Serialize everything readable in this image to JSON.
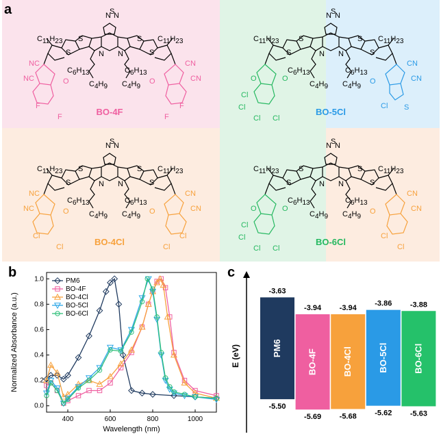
{
  "panel_labels": {
    "a": "a",
    "b": "b",
    "c": "c"
  },
  "molecules": {
    "bo4f": {
      "name": "BO-4F",
      "color": "#ef5fa0",
      "bg": "#fbe3ec"
    },
    "bo5cl": {
      "name": "BO-5Cl",
      "color_left": "#25b860",
      "color_right": "#2a9ae6",
      "bg_left": "#e0f4e6",
      "bg_right": "#dceffb"
    },
    "bo4cl": {
      "name": "BO-4Cl",
      "color": "#f7a13c",
      "bg": "#fdece0"
    },
    "bo6cl": {
      "name": "BO-6Cl",
      "color_left": "#25b860",
      "color_right": "#f7a13c",
      "bg_left": "#e0f4e6",
      "bg_right": "#fdece0"
    }
  },
  "structure_text": {
    "c11": "C",
    "c11sub": "11",
    "h23": "H",
    "h23sub": "23",
    "c6": "C",
    "c6sub": "6",
    "h13": "H",
    "h13sub": "13",
    "c4": "C",
    "c4sub": "4",
    "h9": "H",
    "h9sub": "9",
    "S": "S",
    "N": "N",
    "NC": "NC",
    "CN": "CN",
    "O": "O",
    "F": "F",
    "Cl": "Cl"
  },
  "chart_data": [
    {
      "type": "line",
      "xlabel": "Wavelength (nm)",
      "ylabel": "Normalized Absorbance (a.u.)",
      "xlim": [
        300,
        1100
      ],
      "ylim": [
        -0.05,
        1.05
      ],
      "xticks": [
        400,
        600,
        800,
        1000
      ],
      "yticks": [
        0.0,
        0.2,
        0.4,
        0.6,
        0.8,
        1.0
      ],
      "legend_position": "top-left",
      "series": [
        {
          "name": "PM6",
          "color": "#1f3a5f",
          "marker": "diamond",
          "x": [
            300,
            320,
            350,
            380,
            400,
            450,
            500,
            550,
            580,
            600,
            620,
            640,
            660,
            700,
            750,
            800,
            900,
            1000,
            1100
          ],
          "y": [
            0.21,
            0.24,
            0.24,
            0.21,
            0.24,
            0.38,
            0.55,
            0.75,
            0.9,
            0.97,
            1.0,
            0.8,
            0.4,
            0.12,
            0.1,
            0.09,
            0.08,
            0.07,
            0.06
          ]
        },
        {
          "name": "BO-4F",
          "color": "#ef5fa0",
          "marker": "square",
          "x": [
            300,
            320,
            350,
            380,
            400,
            450,
            500,
            550,
            600,
            650,
            700,
            750,
            780,
            800,
            820,
            840,
            860,
            880,
            900,
            950,
            1000,
            1100
          ],
          "y": [
            0.16,
            0.18,
            0.12,
            0.02,
            0.04,
            0.08,
            0.12,
            0.12,
            0.18,
            0.3,
            0.42,
            0.62,
            0.8,
            0.9,
            0.98,
            1.0,
            0.93,
            0.7,
            0.42,
            0.2,
            0.12,
            0.08
          ]
        },
        {
          "name": "BO-4Cl",
          "color": "#f7a13c",
          "marker": "triangle-up",
          "x": [
            300,
            320,
            350,
            380,
            400,
            450,
            500,
            550,
            600,
            650,
            700,
            750,
            780,
            800,
            820,
            835,
            850,
            870,
            900,
            950,
            1000,
            1100
          ],
          "y": [
            0.2,
            0.32,
            0.26,
            0.07,
            0.09,
            0.17,
            0.2,
            0.17,
            0.23,
            0.33,
            0.44,
            0.62,
            0.8,
            0.9,
            0.97,
            1.0,
            0.95,
            0.7,
            0.4,
            0.18,
            0.1,
            0.06
          ]
        },
        {
          "name": "BO-5Cl",
          "color": "#2aa6e8",
          "marker": "triangle-down",
          "x": [
            300,
            320,
            350,
            380,
            400,
            450,
            500,
            550,
            600,
            650,
            700,
            750,
            780,
            800,
            820,
            840,
            860,
            880,
            900,
            950,
            1000,
            1100
          ],
          "y": [
            0.1,
            0.2,
            0.14,
            0.02,
            0.06,
            0.15,
            0.22,
            0.3,
            0.46,
            0.44,
            0.6,
            0.85,
            1.0,
            0.9,
            0.68,
            0.4,
            0.2,
            0.13,
            0.1,
            0.08,
            0.07,
            0.05
          ]
        },
        {
          "name": "BO-6Cl",
          "color": "#2fbf7a",
          "marker": "circle",
          "x": [
            300,
            320,
            350,
            380,
            400,
            450,
            500,
            550,
            600,
            650,
            700,
            750,
            775,
            800,
            820,
            840,
            860,
            880,
            900,
            950,
            1000,
            1100
          ],
          "y": [
            0.08,
            0.18,
            0.12,
            0.02,
            0.05,
            0.14,
            0.2,
            0.28,
            0.44,
            0.43,
            0.58,
            0.82,
            1.0,
            0.92,
            0.7,
            0.42,
            0.22,
            0.15,
            0.11,
            0.09,
            0.07,
            0.06
          ]
        }
      ]
    },
    {
      "type": "bar",
      "ylabel": "E (eV)",
      "categories": [
        "PM6",
        "BO-4F",
        "BO-4Cl",
        "BO-5Cl",
        "BO-6Cl"
      ],
      "lumo": [
        -3.63,
        -3.94,
        -3.94,
        -3.86,
        -3.88
      ],
      "homo": [
        -5.5,
        -5.69,
        -5.68,
        -5.62,
        -5.63
      ],
      "lumo_labels": [
        "-3.63",
        "-3.94",
        "-3.94",
        "-3.86",
        "-3.88"
      ],
      "homo_labels": [
        "-5.50",
        "-5.69",
        "-5.68",
        "-5.62",
        "-5.63"
      ],
      "colors": [
        "#1f3a5f",
        "#ef5fa0",
        "#f7a13c",
        "#2a9ae6",
        "#25c16a"
      ]
    }
  ]
}
